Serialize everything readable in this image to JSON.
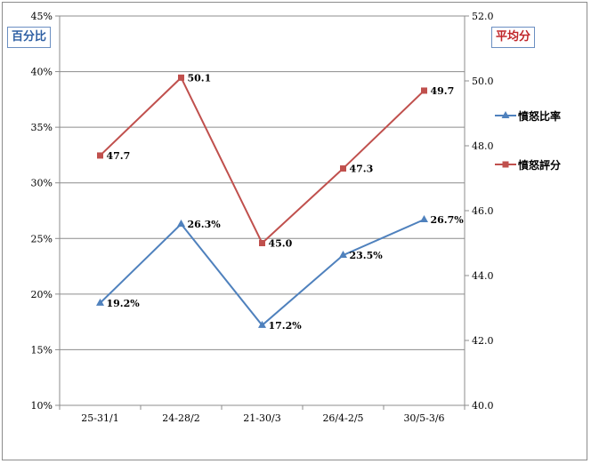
{
  "chart_data": {
    "type": "line",
    "categories": [
      "25-31/1",
      "24-28/2",
      "21-30/3",
      "26/4-2/5",
      "30/5-3/6"
    ],
    "left_axis": {
      "title": "百分比",
      "min": 10,
      "max": 45,
      "step": 5,
      "tick_labels": [
        "10%",
        "15%",
        "20%",
        "25%",
        "30%",
        "35%",
        "40%",
        "45%"
      ]
    },
    "right_axis": {
      "title": "平均分",
      "min": 40,
      "max": 52,
      "step": 2,
      "tick_labels": [
        "40.0",
        "42.0",
        "44.0",
        "46.0",
        "48.0",
        "50.0",
        "52.0"
      ]
    },
    "series": [
      {
        "name": "憤怒比率",
        "axis": "left",
        "color": "#4f81bd",
        "marker": "triangle",
        "values": [
          19.2,
          26.3,
          17.2,
          23.5,
          26.7
        ],
        "labels": [
          "19.2%",
          "26.3%",
          "17.2%",
          "23.5%",
          "26.7%"
        ]
      },
      {
        "name": "憤怒評分",
        "axis": "right",
        "color": "#c0504d",
        "marker": "square",
        "values": [
          47.7,
          50.1,
          45.0,
          47.3,
          49.7
        ],
        "labels": [
          "47.7",
          "50.1",
          "45.0",
          "47.3",
          "49.7"
        ]
      }
    ],
    "grid": true,
    "legend_position": "right"
  }
}
